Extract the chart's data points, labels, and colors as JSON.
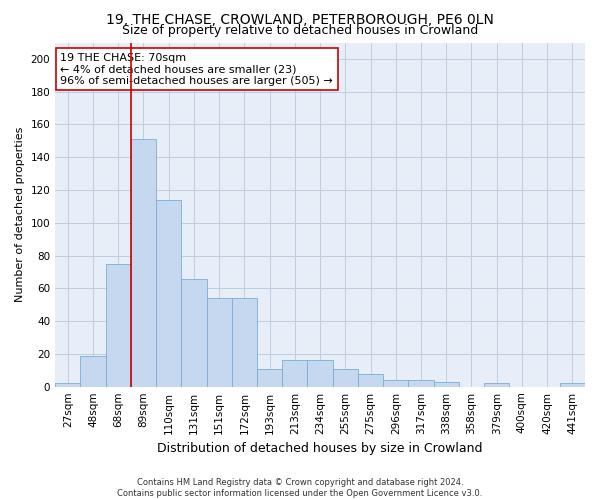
{
  "title": "19, THE CHASE, CROWLAND, PETERBOROUGH, PE6 0LN",
  "subtitle": "Size of property relative to detached houses in Crowland",
  "xlabel": "Distribution of detached houses by size in Crowland",
  "ylabel": "Number of detached properties",
  "bar_color": "#c5d8f0",
  "bar_edge_color": "#7aadd4",
  "bg_color": "#e8eef8",
  "grid_color": "#c0cce0",
  "fig_bg_color": "#ffffff",
  "categories": [
    "27sqm",
    "48sqm",
    "68sqm",
    "89sqm",
    "110sqm",
    "131sqm",
    "151sqm",
    "172sqm",
    "193sqm",
    "213sqm",
    "234sqm",
    "255sqm",
    "275sqm",
    "296sqm",
    "317sqm",
    "338sqm",
    "358sqm",
    "379sqm",
    "400sqm",
    "420sqm",
    "441sqm"
  ],
  "values": [
    2,
    19,
    75,
    151,
    114,
    66,
    54,
    54,
    11,
    16,
    16,
    11,
    8,
    4,
    4,
    3,
    0,
    2,
    0,
    0,
    2
  ],
  "vline_x_idx": 2,
  "vline_color": "#cc0000",
  "annotation_text": "19 THE CHASE: 70sqm\n← 4% of detached houses are smaller (23)\n96% of semi-detached houses are larger (505) →",
  "annotation_box_color": "#ffffff",
  "annotation_box_edge": "#cc0000",
  "ylim": [
    0,
    210
  ],
  "yticks": [
    0,
    20,
    40,
    60,
    80,
    100,
    120,
    140,
    160,
    180,
    200
  ],
  "footer": "Contains HM Land Registry data © Crown copyright and database right 2024.\nContains public sector information licensed under the Open Government Licence v3.0.",
  "title_fontsize": 10,
  "subtitle_fontsize": 9,
  "ylabel_fontsize": 8,
  "xlabel_fontsize": 9,
  "tick_fontsize": 7.5,
  "annotation_fontsize": 8,
  "footer_fontsize": 6
}
